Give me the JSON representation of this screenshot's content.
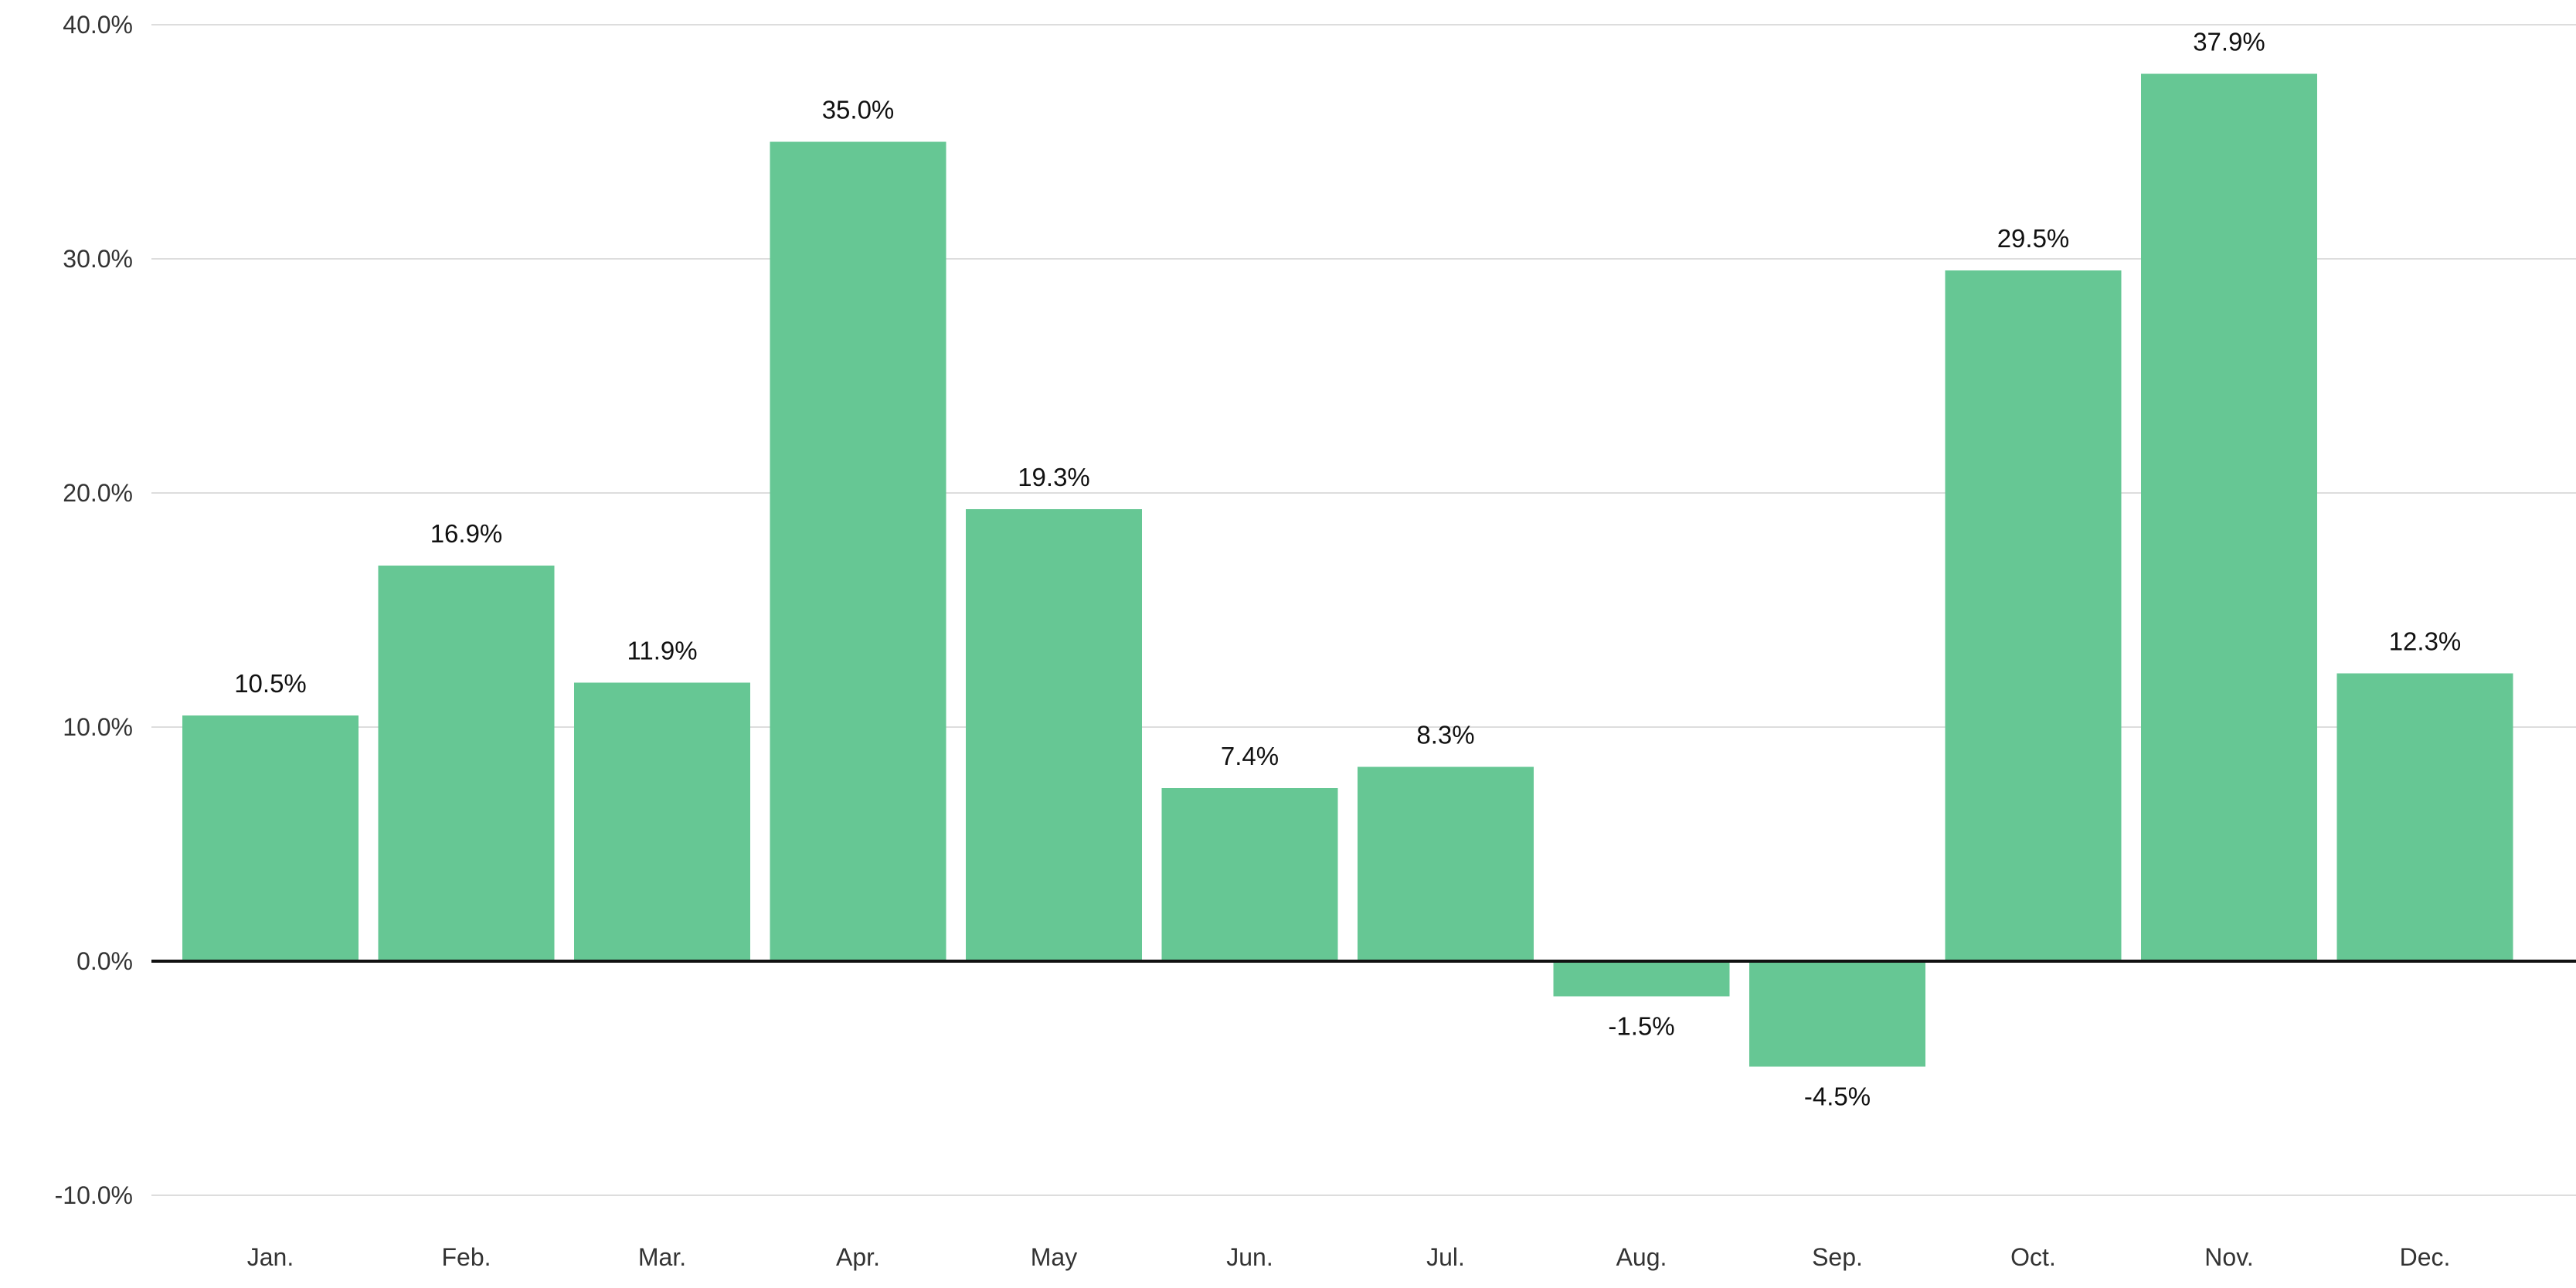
{
  "chart_data": {
    "type": "bar",
    "title": "",
    "xlabel": "",
    "ylabel": "",
    "categories": [
      "Jan.",
      "Feb.",
      "Mar.",
      "Apr.",
      "May",
      "Jun.",
      "Jul.",
      "Aug.",
      "Sep.",
      "Oct.",
      "Nov.",
      "Dec."
    ],
    "values": [
      10.5,
      16.9,
      11.9,
      35.0,
      19.3,
      7.4,
      8.3,
      -1.5,
      -4.5,
      29.5,
      37.9,
      12.3
    ],
    "value_labels": [
      "10.5%",
      "16.9%",
      "11.9%",
      "35.0%",
      "19.3%",
      "7.4%",
      "8.3%",
      "-1.5%",
      "-4.5%",
      "29.5%",
      "37.9%",
      "12.3%"
    ],
    "ylim": [
      -10,
      40
    ],
    "y_ticks": [
      40,
      30,
      20,
      10,
      0,
      -10
    ],
    "y_tick_labels": [
      "40.0%",
      "30.0%",
      "20.0%",
      "10.0%",
      "0.0%",
      "-10.0%"
    ],
    "grid": true,
    "legend": "none",
    "bar_color": "#66c794",
    "zero_line_color": "#111111",
    "grid_color": "#dddddd"
  }
}
